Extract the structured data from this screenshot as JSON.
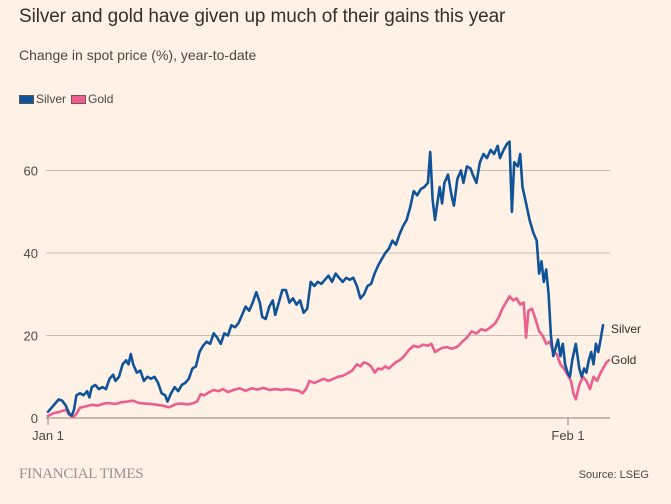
{
  "chart_data": {
    "type": "line",
    "title": "Silver and gold have given up much of their gains this year",
    "subtitle": "Change in spot price (%), year-to-date",
    "xlabel": "",
    "ylabel": "",
    "ylim": [
      0,
      70
    ],
    "xlim_days": [
      0,
      34
    ],
    "yticks": [
      0,
      20,
      40,
      60
    ],
    "xticks": [
      {
        "day": 0,
        "label": "Jan 1"
      },
      {
        "day": 31,
        "label": "Feb 1"
      }
    ],
    "grid": true,
    "legend_position": "top-left",
    "series": [
      {
        "name": "Silver",
        "color": "#0f5499",
        "end_label": "Silver",
        "points": [
          [
            0,
            1.5
          ],
          [
            0.3,
            2.5
          ],
          [
            0.6,
            3.5
          ],
          [
            0.9,
            4.5
          ],
          [
            1.2,
            4.2
          ],
          [
            1.5,
            3
          ],
          [
            1.8,
            1
          ],
          [
            2.0,
            0.6
          ],
          [
            2.2,
            2
          ],
          [
            2.4,
            5.5
          ],
          [
            2.7,
            6
          ],
          [
            3.0,
            5.5
          ],
          [
            3.3,
            6.5
          ],
          [
            3.5,
            5
          ],
          [
            3.7,
            7.5
          ],
          [
            4.0,
            8
          ],
          [
            4.3,
            7
          ],
          [
            4.6,
            7.5
          ],
          [
            4.9,
            7
          ],
          [
            5.2,
            9.5
          ],
          [
            5.5,
            10.5
          ],
          [
            5.7,
            9
          ],
          [
            6.0,
            10
          ],
          [
            6.3,
            13
          ],
          [
            6.6,
            14
          ],
          [
            6.8,
            13
          ],
          [
            7.0,
            15.5
          ],
          [
            7.2,
            13
          ],
          [
            7.5,
            11
          ],
          [
            7.8,
            11.5
          ],
          [
            8.1,
            9
          ],
          [
            8.4,
            10
          ],
          [
            8.7,
            9.5
          ],
          [
            9.0,
            10
          ],
          [
            9.3,
            8.5
          ],
          [
            9.6,
            6
          ],
          [
            9.9,
            5.5
          ],
          [
            10.1,
            4
          ],
          [
            10.4,
            6
          ],
          [
            10.7,
            7.5
          ],
          [
            11.0,
            6.5
          ],
          [
            11.3,
            8
          ],
          [
            11.6,
            8.5
          ],
          [
            11.9,
            9.5
          ],
          [
            12.2,
            12
          ],
          [
            12.5,
            12.5
          ],
          [
            12.8,
            16
          ],
          [
            13.1,
            17.5
          ],
          [
            13.4,
            18.5
          ],
          [
            13.7,
            18
          ],
          [
            14.0,
            20.5
          ],
          [
            14.3,
            19.5
          ],
          [
            14.6,
            18
          ],
          [
            14.9,
            20.5
          ],
          [
            15.2,
            20
          ],
          [
            15.5,
            22.5
          ],
          [
            15.8,
            22
          ],
          [
            16.1,
            23
          ],
          [
            16.4,
            25
          ],
          [
            16.7,
            27
          ],
          [
            17.0,
            26
          ],
          [
            17.3,
            28
          ],
          [
            17.6,
            30.5
          ],
          [
            17.9,
            28
          ],
          [
            18.1,
            24.5
          ],
          [
            18.4,
            24
          ],
          [
            18.7,
            27
          ],
          [
            19.0,
            28.5
          ],
          [
            19.2,
            25
          ],
          [
            19.5,
            28
          ],
          [
            19.8,
            31
          ],
          [
            20.1,
            31
          ],
          [
            20.4,
            28
          ],
          [
            20.7,
            29
          ],
          [
            21.0,
            27.5
          ],
          [
            21.3,
            28.5
          ],
          [
            21.6,
            25.5
          ],
          [
            21.9,
            26.5
          ],
          [
            22.2,
            33
          ],
          [
            22.5,
            32
          ],
          [
            22.8,
            33
          ],
          [
            23.1,
            32.5
          ],
          [
            23.4,
            33.5
          ],
          [
            23.7,
            34.5
          ],
          [
            24.0,
            33
          ],
          [
            24.3,
            35
          ],
          [
            24.6,
            34
          ],
          [
            24.9,
            33
          ],
          [
            25.2,
            34
          ],
          [
            25.5,
            33.5
          ],
          [
            25.8,
            34
          ],
          [
            26.1,
            32
          ],
          [
            26.4,
            29
          ],
          [
            26.7,
            30
          ],
          [
            27.0,
            32
          ],
          [
            27.3,
            32.5
          ],
          [
            27.6,
            35
          ],
          [
            27.9,
            37
          ],
          [
            28.2,
            38.5
          ],
          [
            28.5,
            40
          ],
          [
            28.8,
            41
          ],
          [
            29.1,
            43
          ],
          [
            29.4,
            42
          ],
          [
            29.7,
            44.5
          ],
          [
            30.0,
            46.5
          ],
          [
            30.3,
            48
          ],
          [
            30.6,
            51
          ],
          [
            30.9,
            55
          ],
          [
            31.2,
            54
          ],
          [
            31.5,
            55.5
          ],
          [
            31.8,
            56
          ],
          [
            32.1,
            57
          ],
          [
            32.3,
            64.5
          ],
          [
            32.5,
            53
          ],
          [
            32.7,
            48
          ],
          [
            32.9,
            52
          ],
          [
            33.1,
            56
          ],
          [
            33.3,
            52
          ],
          [
            33.5,
            57
          ],
          [
            33.8,
            59
          ],
          [
            34.1,
            54
          ],
          [
            34.3,
            51.5
          ],
          [
            34.6,
            58
          ],
          [
            34.9,
            60
          ],
          [
            35.1,
            57
          ],
          [
            35.4,
            61
          ],
          [
            35.7,
            60.5
          ],
          [
            35.9,
            59
          ],
          [
            36.2,
            57
          ],
          [
            36.5,
            62
          ],
          [
            36.8,
            64
          ],
          [
            37.1,
            63
          ],
          [
            37.4,
            65
          ],
          [
            37.7,
            64
          ],
          [
            38.0,
            66
          ],
          [
            38.2,
            63
          ],
          [
            38.5,
            65
          ],
          [
            38.8,
            66.5
          ],
          [
            39.0,
            67
          ],
          [
            39.2,
            50
          ],
          [
            39.4,
            62
          ],
          [
            39.7,
            61
          ],
          [
            39.9,
            64
          ],
          [
            40.1,
            56
          ],
          [
            40.4,
            52
          ],
          [
            40.7,
            48
          ],
          [
            41.0,
            45
          ],
          [
            41.3,
            43
          ],
          [
            41.5,
            35
          ],
          [
            41.7,
            38
          ],
          [
            41.9,
            33
          ],
          [
            42.1,
            36
          ],
          [
            42.3,
            30
          ],
          [
            42.5,
            20
          ],
          [
            42.7,
            15
          ],
          [
            42.9,
            17
          ],
          [
            43.1,
            19
          ],
          [
            43.3,
            15
          ],
          [
            43.5,
            18
          ],
          [
            43.7,
            13
          ],
          [
            43.9,
            11
          ],
          [
            44.1,
            10
          ],
          [
            44.3,
            14
          ],
          [
            44.6,
            18
          ],
          [
            44.9,
            12
          ],
          [
            45.1,
            10
          ],
          [
            45.3,
            12
          ],
          [
            45.5,
            11
          ],
          [
            45.7,
            14
          ],
          [
            45.9,
            16
          ],
          [
            46.1,
            13
          ],
          [
            46.3,
            18
          ],
          [
            46.5,
            16
          ],
          [
            46.7,
            19
          ],
          [
            46.9,
            22.5
          ]
        ]
      },
      {
        "name": "Gold",
        "color": "#eb5e8d",
        "end_label": "Gold",
        "points": [
          [
            0,
            0.5
          ],
          [
            0.5,
            1.2
          ],
          [
            1.0,
            1.5
          ],
          [
            1.5,
            2
          ],
          [
            1.8,
            0.8
          ],
          [
            2.1,
            0.2
          ],
          [
            2.4,
            1
          ],
          [
            2.7,
            2.5
          ],
          [
            3.2,
            2.8
          ],
          [
            3.7,
            3.2
          ],
          [
            4.2,
            3
          ],
          [
            4.7,
            3.5
          ],
          [
            5.2,
            3.6
          ],
          [
            5.7,
            3.4
          ],
          [
            6.2,
            3.8
          ],
          [
            6.7,
            4
          ],
          [
            7.2,
            4.2
          ],
          [
            7.7,
            3.6
          ],
          [
            8.2,
            3.5
          ],
          [
            8.7,
            3.4
          ],
          [
            9.2,
            3.2
          ],
          [
            9.7,
            3
          ],
          [
            10.2,
            2.6
          ],
          [
            10.5,
            2.9
          ],
          [
            10.8,
            3.4
          ],
          [
            11.3,
            3.5
          ],
          [
            11.8,
            3.3
          ],
          [
            12.3,
            3.6
          ],
          [
            12.6,
            4
          ],
          [
            12.9,
            5.8
          ],
          [
            13.2,
            5.5
          ],
          [
            13.6,
            6.2
          ],
          [
            14.0,
            6.8
          ],
          [
            14.4,
            6.5
          ],
          [
            14.8,
            7
          ],
          [
            15.2,
            6.3
          ],
          [
            15.7,
            6.8
          ],
          [
            16.2,
            7.2
          ],
          [
            16.7,
            6.6
          ],
          [
            17.2,
            7.2
          ],
          [
            17.7,
            6.9
          ],
          [
            18.2,
            7.3
          ],
          [
            18.7,
            6.8
          ],
          [
            19.2,
            7
          ],
          [
            19.7,
            6.8
          ],
          [
            20.2,
            7
          ],
          [
            20.7,
            6.8
          ],
          [
            21.2,
            6.6
          ],
          [
            21.5,
            6
          ],
          [
            21.8,
            7
          ],
          [
            22.1,
            9
          ],
          [
            22.5,
            8.5
          ],
          [
            22.9,
            9
          ],
          [
            23.3,
            9.5
          ],
          [
            23.7,
            9
          ],
          [
            24.1,
            9.5
          ],
          [
            24.5,
            10
          ],
          [
            24.9,
            10.2
          ],
          [
            25.3,
            10.8
          ],
          [
            25.7,
            11.5
          ],
          [
            26.1,
            13
          ],
          [
            26.4,
            12.5
          ],
          [
            26.7,
            13.5
          ],
          [
            27.0,
            13.2
          ],
          [
            27.3,
            12.5
          ],
          [
            27.6,
            11
          ],
          [
            27.9,
            12
          ],
          [
            28.2,
            11.8
          ],
          [
            28.5,
            12.5
          ],
          [
            28.8,
            12
          ],
          [
            29.1,
            12.8
          ],
          [
            29.4,
            13.5
          ],
          [
            29.7,
            14
          ],
          [
            30.1,
            15
          ],
          [
            30.5,
            16.5
          ],
          [
            30.9,
            17.5
          ],
          [
            31.3,
            17.2
          ],
          [
            31.7,
            17.8
          ],
          [
            32.1,
            17.5
          ],
          [
            32.4,
            18
          ],
          [
            32.7,
            16
          ],
          [
            33.0,
            16.5
          ],
          [
            33.3,
            17
          ],
          [
            33.7,
            17.2
          ],
          [
            34.1,
            16.8
          ],
          [
            34.5,
            17.2
          ],
          [
            34.7,
            17.5
          ],
          [
            35.0,
            18.5
          ],
          [
            35.4,
            19.5
          ],
          [
            35.8,
            21
          ],
          [
            36.2,
            20.5
          ],
          [
            36.6,
            21.5
          ],
          [
            37.0,
            21.2
          ],
          [
            37.4,
            22
          ],
          [
            37.8,
            23
          ],
          [
            38.1,
            24.5
          ],
          [
            38.4,
            26.5
          ],
          [
            38.7,
            28
          ],
          [
            39.0,
            29.5
          ],
          [
            39.3,
            28.5
          ],
          [
            39.6,
            29
          ],
          [
            39.9,
            27.5
          ],
          [
            40.2,
            28
          ],
          [
            40.4,
            19.5
          ],
          [
            40.6,
            26
          ],
          [
            40.9,
            26.5
          ],
          [
            41.2,
            24
          ],
          [
            41.5,
            21
          ],
          [
            41.8,
            20
          ],
          [
            42.1,
            18
          ],
          [
            42.4,
            18.5
          ],
          [
            42.7,
            16
          ],
          [
            43.0,
            15.5
          ],
          [
            43.3,
            13
          ],
          [
            43.6,
            12
          ],
          [
            43.9,
            10.5
          ],
          [
            44.2,
            9
          ],
          [
            44.4,
            6
          ],
          [
            44.6,
            4.5
          ],
          [
            44.9,
            8
          ],
          [
            45.2,
            10
          ],
          [
            45.5,
            9
          ],
          [
            45.8,
            7
          ],
          [
            46.1,
            10
          ],
          [
            46.4,
            9
          ],
          [
            46.7,
            11
          ],
          [
            47.0,
            12.5
          ],
          [
            47.2,
            13.5
          ],
          [
            47.4,
            14
          ]
        ]
      }
    ]
  },
  "legend": {
    "items": [
      {
        "label": "Silver",
        "color": "#0f5499"
      },
      {
        "label": "Gold",
        "color": "#eb5e8d"
      }
    ]
  },
  "footer": {
    "brand": "FINANCIAL TIMES",
    "source": "Source: LSEG"
  }
}
